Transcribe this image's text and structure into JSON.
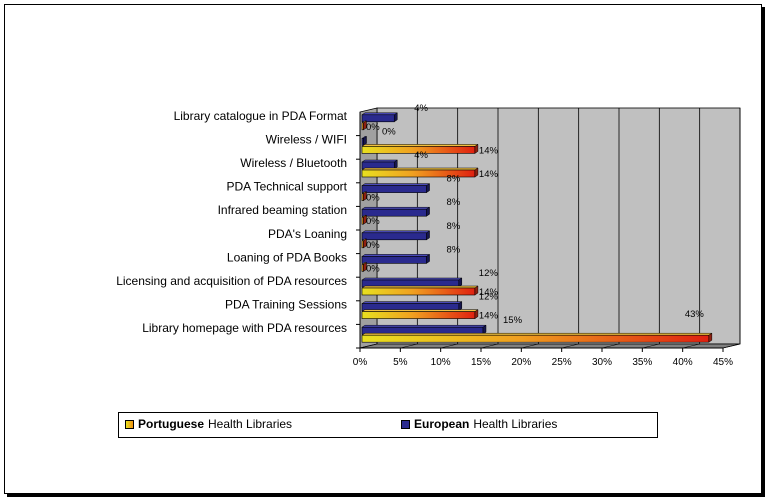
{
  "chart_data": {
    "type": "bar",
    "orientation": "horizontal",
    "categories": [
      "Library catalogue in PDA Format",
      "Wireless / WIFI",
      "Wireless / Bluetooth",
      "PDA Technical support",
      "Infrared beaming station",
      "PDA's Loaning",
      "Loaning of PDA  Books",
      "Licensing and acquisition of PDA  resources",
      "PDA Training Sessions",
      "Library homepage with PDA resources"
    ],
    "series": [
      {
        "name": "Portuguese Health Libraries",
        "values": [
          0,
          14,
          14,
          0,
          0,
          0,
          0,
          14,
          14,
          43
        ],
        "labels": [
          "0%",
          "14%",
          "14%",
          "0%",
          "0%",
          "0%",
          "0%",
          "14%",
          "14%",
          "43%"
        ]
      },
      {
        "name": "European Health Libraries",
        "values": [
          4,
          0,
          4,
          8,
          8,
          8,
          8,
          12,
          12,
          15
        ],
        "labels": [
          "4%",
          "0%",
          "4%",
          "8%",
          "8%",
          "8%",
          "8%",
          "12%",
          "12%",
          "15%"
        ]
      }
    ],
    "xlim": [
      0,
      45
    ],
    "xticks": [
      "0%",
      "5%",
      "10%",
      "15%",
      "20%",
      "25%",
      "30%",
      "35%",
      "40%",
      "45%"
    ],
    "grid": true,
    "legend_position": "bottom",
    "colors": {
      "portuguese": "#f07a10",
      "european": "#2a2a8e",
      "plot_bg": "#c0c0c0"
    }
  },
  "legend": {
    "portuguese_bold": "Portuguese",
    "portuguese_rest": "Health Libraries",
    "european_bold": "European",
    "european_rest": "Health Libraries"
  }
}
